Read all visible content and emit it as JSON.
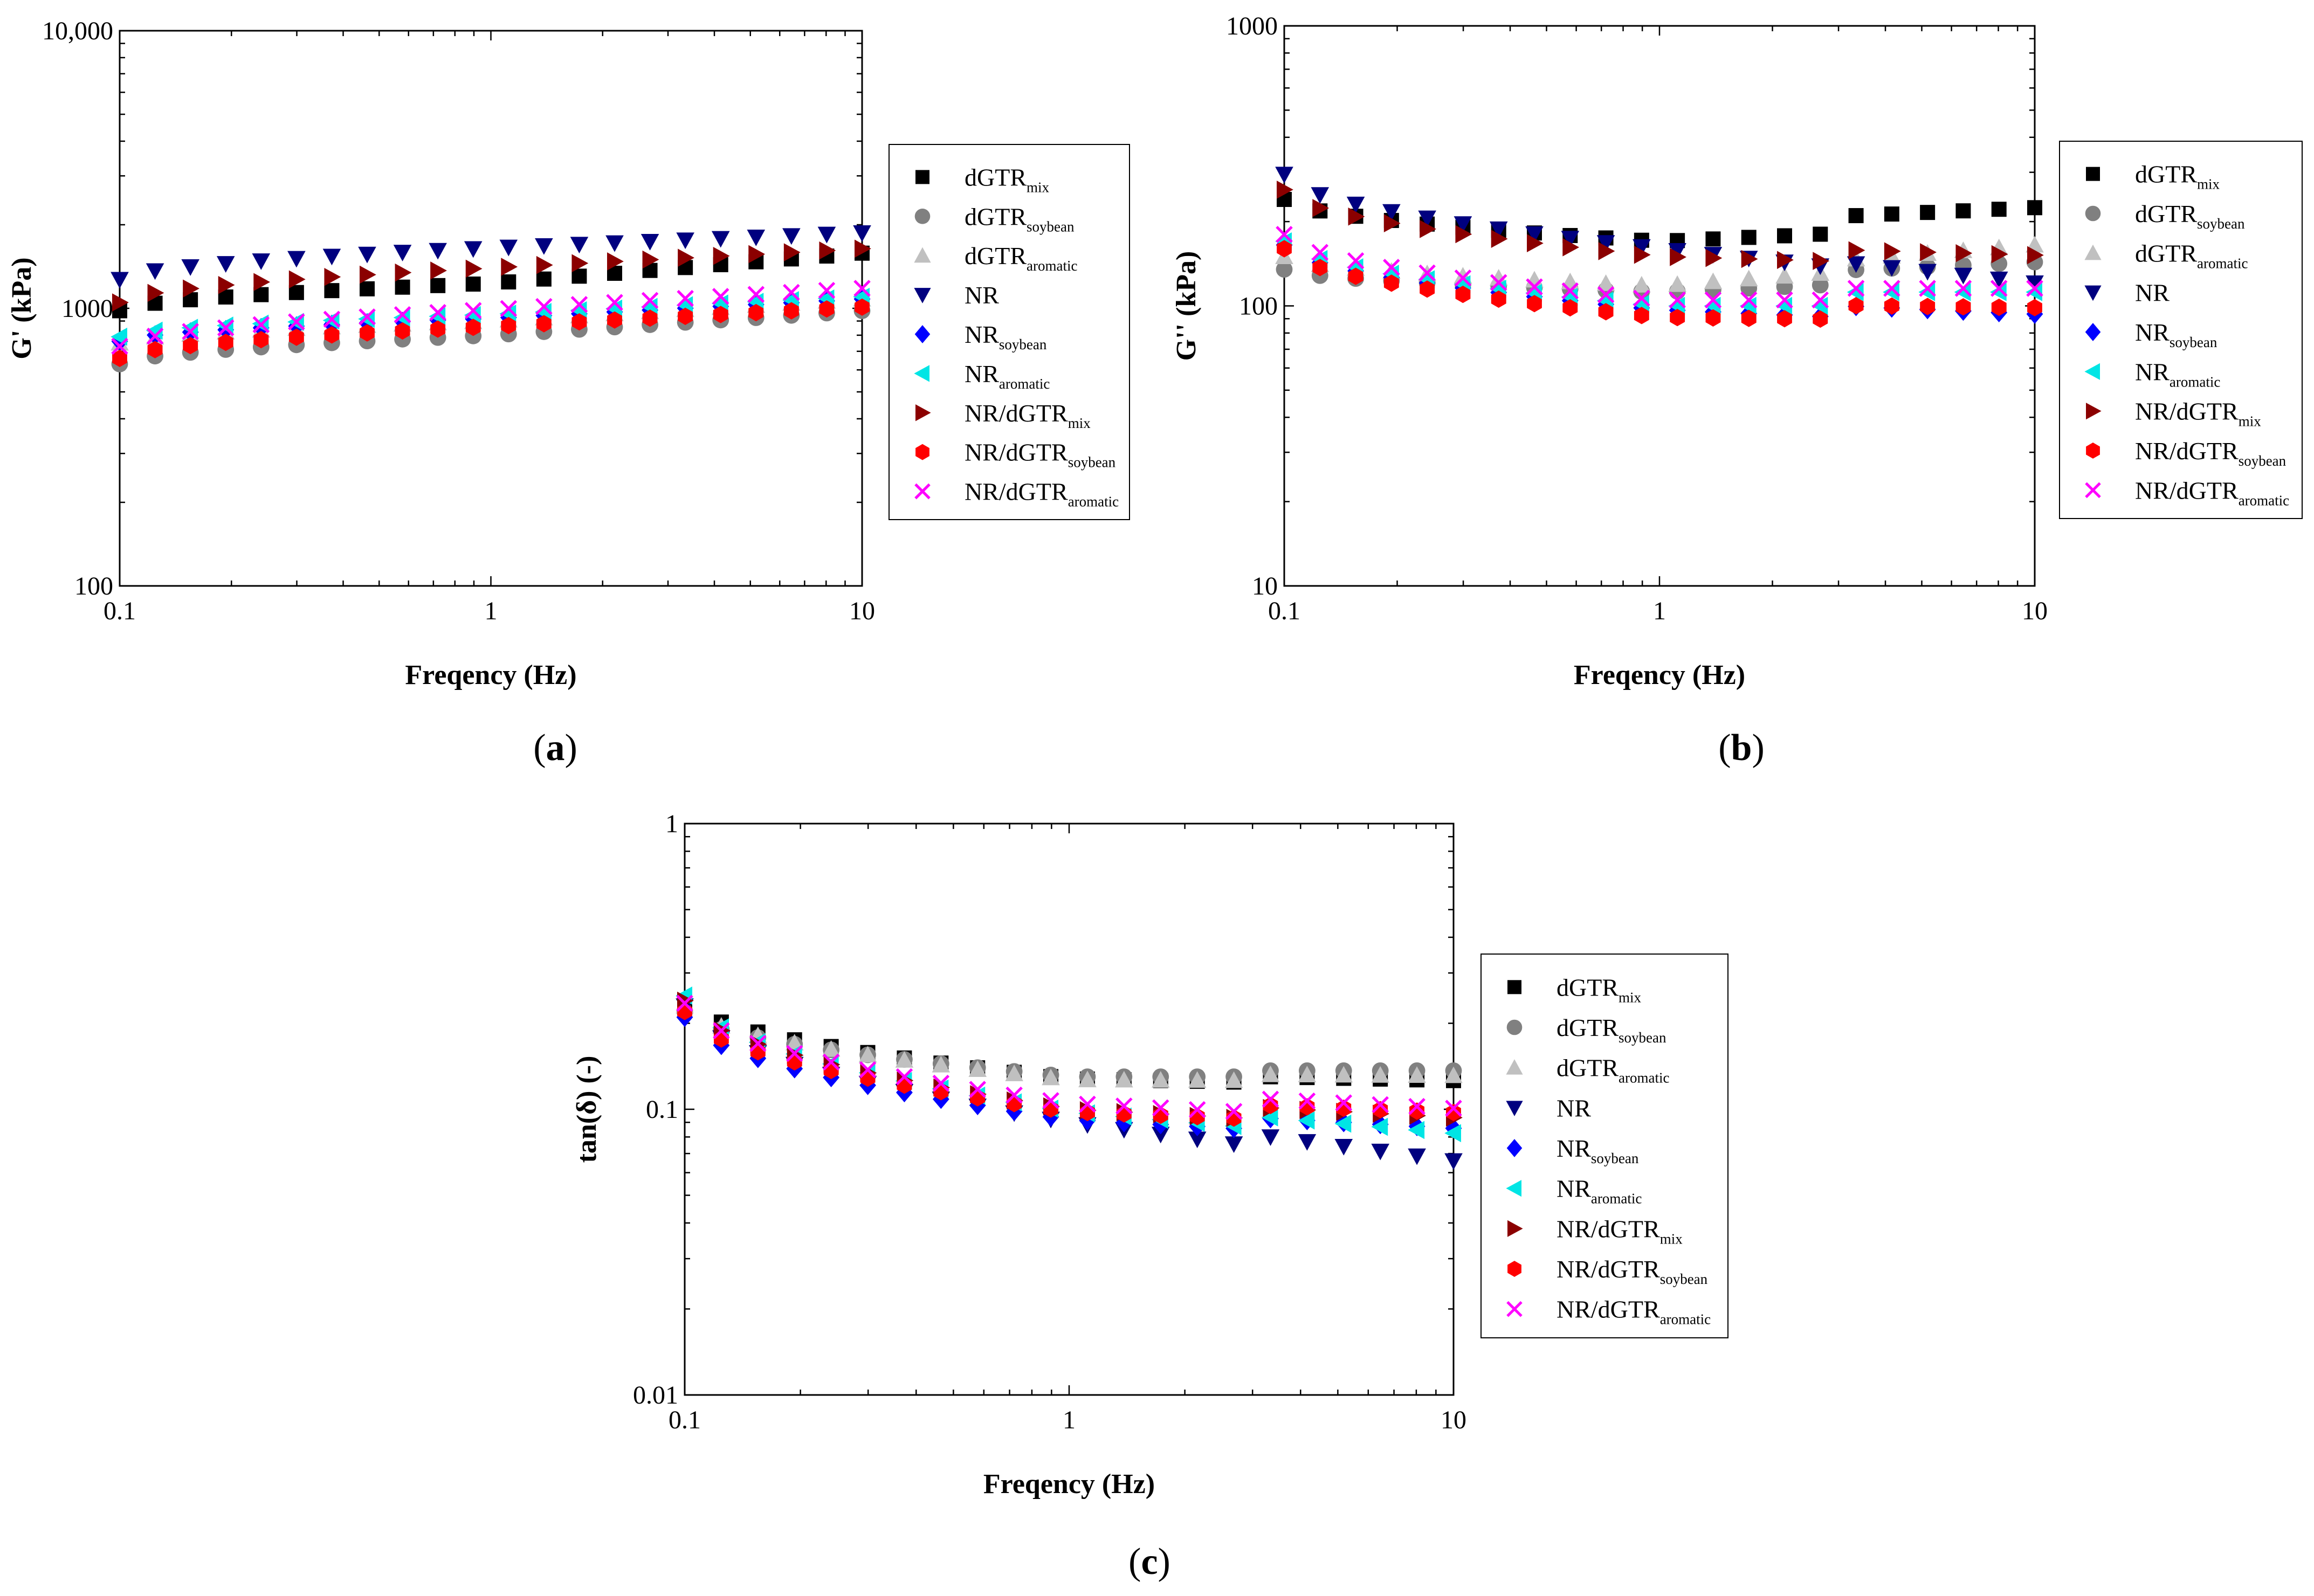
{
  "colors": {
    "dGTR_mix": "#000000",
    "dGTR_soybean": "#808080",
    "dGTR_aromatic": "#c0c0c0",
    "NR": "#00007f",
    "NR_soybean": "#0000ff",
    "NR_aromatic": "#00e5e5",
    "NR/dGTR_mix": "#8b0000",
    "NR/dGTR_soybean": "#ff0000",
    "NR/dGTR_aromatic": "#ff00ff"
  },
  "legend": [
    {
      "key": "dGTR_mix",
      "base": "dGTR",
      "sub": "mix",
      "marker": "square-icon"
    },
    {
      "key": "dGTR_soybean",
      "base": "dGTR",
      "sub": "soybean",
      "marker": "circle-icon"
    },
    {
      "key": "dGTR_aromatic",
      "base": "dGTR",
      "sub": "aromatic",
      "marker": "triangle-up-icon"
    },
    {
      "key": "NR",
      "base": "NR",
      "sub": "",
      "marker": "triangle-down-icon"
    },
    {
      "key": "NR_soybean",
      "base": "NR",
      "sub": "soybean",
      "marker": "diamond-icon"
    },
    {
      "key": "NR_aromatic",
      "base": "NR",
      "sub": "aromatic",
      "marker": "triangle-left-icon"
    },
    {
      "key": "NR/dGTR_mix",
      "base": "NR/dGTR",
      "sub": "mix",
      "marker": "triangle-right-icon"
    },
    {
      "key": "NR/dGTR_soybean",
      "base": "NR/dGTR",
      "sub": "soybean",
      "marker": "hexagon-icon"
    },
    {
      "key": "NR/dGTR_aromatic",
      "base": "NR/dGTR",
      "sub": "aromatic",
      "marker": "cross-icon"
    }
  ],
  "chart_data": [
    {
      "type": "scatter",
      "panel_label": "(a)",
      "xlabel": "Freqency (Hz)",
      "ylabel": "G' (kPa)",
      "xscale": "log",
      "yscale": "log",
      "xlim": [
        0.1,
        10
      ],
      "ylim": [
        100,
        10000
      ],
      "xticks": [
        {
          "v": 0.1,
          "label": "0.1"
        },
        {
          "v": 1,
          "label": "1"
        },
        {
          "v": 10,
          "label": "10"
        }
      ],
      "yticks": [
        {
          "v": 100,
          "label": "100"
        },
        {
          "v": 1000,
          "label": "1000"
        },
        {
          "v": 10000,
          "label": "10,000"
        }
      ],
      "legend_position": "right",
      "series": [
        {
          "key": "dGTR_mix",
          "v0": 980,
          "v1": 1230,
          "v2": 1580,
          "jump": 1.0
        },
        {
          "key": "dGTR_soybean",
          "v0": 630,
          "v1": 800,
          "v2": 980,
          "jump": 1.0
        },
        {
          "key": "dGTR_aromatic",
          "v0": 750,
          "v1": 900,
          "v2": 1080,
          "jump": 1.0
        },
        {
          "key": "NR",
          "v0": 1270,
          "v1": 1650,
          "v2": 1870,
          "jump": 1.0
        },
        {
          "key": "NR_soybean",
          "v0": 760,
          "v1": 920,
          "v2": 1080,
          "jump": 1.0
        },
        {
          "key": "NR_aromatic",
          "v0": 790,
          "v1": 950,
          "v2": 1100,
          "jump": 1.0
        },
        {
          "key": "NR/dGTR_mix",
          "v0": 1050,
          "v1": 1400,
          "v2": 1640,
          "jump": 1.0
        },
        {
          "key": "NR/dGTR_soybean",
          "v0": 660,
          "v1": 860,
          "v2": 1010,
          "jump": 1.0
        },
        {
          "key": "NR/dGTR_aromatic",
          "v0": 730,
          "v1": 990,
          "v2": 1180,
          "jump": 1.0
        }
      ]
    },
    {
      "type": "scatter",
      "panel_label": "(b)",
      "xlabel": "Freqency (Hz)",
      "ylabel": "G'' (kPa)",
      "xscale": "log",
      "yscale": "log",
      "xlim": [
        0.1,
        10
      ],
      "ylim": [
        10,
        1000
      ],
      "xticks": [
        {
          "v": 0.1,
          "label": "0.1"
        },
        {
          "v": 1,
          "label": "1"
        },
        {
          "v": 10,
          "label": "10"
        }
      ],
      "yticks": [
        {
          "v": 10,
          "label": "10"
        },
        {
          "v": 100,
          "label": "100"
        },
        {
          "v": 1000,
          "label": "1000"
        }
      ],
      "legend_position": "right",
      "series": [
        {
          "key": "dGTR_mix",
          "v0": 240,
          "v1": 170,
          "v2": 195,
          "jump": 1.15
        },
        {
          "key": "dGTR_soybean",
          "v0": 135,
          "v1": 112,
          "v2": 128,
          "jump": 1.12
        },
        {
          "key": "dGTR_aromatic",
          "v0": 150,
          "v1": 118,
          "v2": 150,
          "jump": 1.1
        },
        {
          "key": "NR",
          "v0": 295,
          "v1": 160,
          "v2": 115,
          "jump": 1.05
        },
        {
          "key": "NR_soybean",
          "v0": 165,
          "v1": 97,
          "v2": 85,
          "jump": 1.1
        },
        {
          "key": "NR_aromatic",
          "v0": 170,
          "v1": 100,
          "v2": 100,
          "jump": 1.12
        },
        {
          "key": "NR/dGTR_mix",
          "v0": 260,
          "v1": 150,
          "v2": 138,
          "jump": 1.1
        },
        {
          "key": "NR/dGTR_soybean",
          "v0": 160,
          "v1": 91,
          "v2": 88,
          "jump": 1.12
        },
        {
          "key": "NR/dGTR_aromatic",
          "v0": 180,
          "v1": 105,
          "v2": 105,
          "jump": 1.1
        }
      ]
    },
    {
      "type": "scatter",
      "panel_label": "(c)",
      "xlabel": "Freqency (Hz)",
      "ylabel": "tan(δ) (-)",
      "xscale": "log",
      "yscale": "log",
      "xlim": [
        0.1,
        10
      ],
      "ylim": [
        0.01,
        1
      ],
      "xticks": [
        {
          "v": 0.1,
          "label": "0.1"
        },
        {
          "v": 1,
          "label": "1"
        },
        {
          "v": 10,
          "label": "10"
        }
      ],
      "yticks": [
        {
          "v": 0.01,
          "label": "0.01"
        },
        {
          "v": 0.1,
          "label": "0.1"
        },
        {
          "v": 1,
          "label": "1"
        }
      ],
      "legend_position": "right",
      "series": [
        {
          "key": "dGTR_mix",
          "v0": 0.24,
          "v1": 0.128,
          "v2": 0.12,
          "jump": 1.05
        },
        {
          "key": "dGTR_soybean",
          "v0": 0.22,
          "v1": 0.13,
          "v2": 0.13,
          "jump": 1.05
        },
        {
          "key": "dGTR_aromatic",
          "v0": 0.23,
          "v1": 0.127,
          "v2": 0.125,
          "jump": 1.05
        },
        {
          "key": "NR",
          "v0": 0.23,
          "v1": 0.09,
          "v2": 0.06,
          "jump": 1.1
        },
        {
          "key": "NR_soybean",
          "v0": 0.21,
          "v1": 0.092,
          "v2": 0.078,
          "jump": 1.1
        },
        {
          "key": "NR_aromatic",
          "v0": 0.25,
          "v1": 0.098,
          "v2": 0.075,
          "jump": 1.1
        },
        {
          "key": "NR/dGTR_mix",
          "v0": 0.24,
          "v1": 0.1,
          "v2": 0.085,
          "jump": 1.1
        },
        {
          "key": "NR/dGTR_soybean",
          "v0": 0.22,
          "v1": 0.098,
          "v2": 0.087,
          "jump": 1.12
        },
        {
          "key": "NR/dGTR_aromatic",
          "v0": 0.235,
          "v1": 0.105,
          "v2": 0.09,
          "jump": 1.12
        }
      ]
    }
  ]
}
